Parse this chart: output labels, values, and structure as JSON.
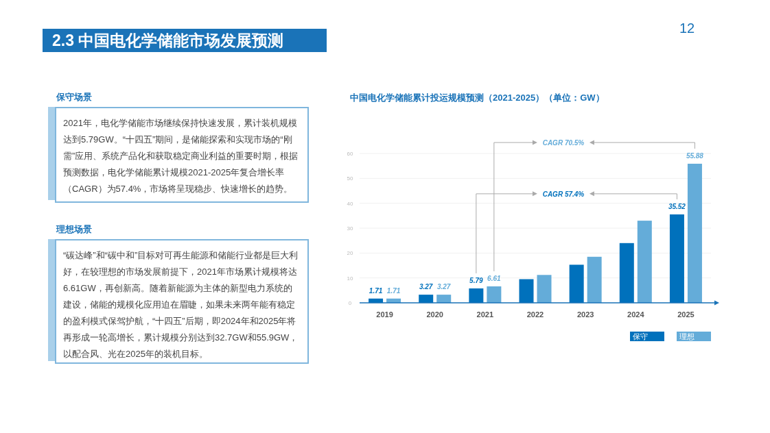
{
  "chart_data": [
    {
      "type": "other",
      "title": "2.3 中国电化学储能市场发展预测",
      "annotations": [
        "12"
      ]
    },
    {
      "type": "other",
      "title": "保守场景",
      "annotations": [
        "2021年，电化学储能市场继续保持快速发展，累计装机规模达到5.79GW。“十四五”期间，是储能探索和实现市场的“刚需”应用、系统产品化和获取稳定商业利益的重要时期，根据预测数据，电化学储能累计规模2021-2025年复合增长率（CAGR）为57.4%，市场将呈现稳步、快速增长的趋势。"
      ]
    },
    {
      "type": "other",
      "title": "理想场景",
      "annotations": [
        "“碳达峰”和“碳中和”目标对可再生能源和储能行业都是巨大利好，在较理想的市场发展前提下，2021年市场累计规模将达6.61GW，再创新高。随着新能源为主体的新型电力系统的建设，储能的规模化应用迫在眉睫，如果未来两年能有稳定的盈利模式保驾护航，“十四五”后期，即2024年和2025年将再形成一轮高增长，累计规模分别达到32.7GW和55.9GW，以配合风、光在2025年的装机目标。"
      ]
    },
    {
      "type": "bar",
      "title": "中国电化学储能累计投运规模预测（2021-2025）（单位：GW）",
      "categories": [
        "2019",
        "2020",
        "2021",
        "2022",
        "2023",
        "2024",
        "2025"
      ],
      "series": [
        {
          "name": "保守",
          "color": "#0071bc",
          "values": [
            1.71,
            3.27,
            5.79,
            9.5,
            15.3,
            24,
            35.52
          ],
          "value_labels": [
            "1.71",
            "3.27",
            "5.79",
            null,
            null,
            null,
            "35.52"
          ]
        },
        {
          "name": "理想",
          "color": "#64acd9",
          "values": [
            1.71,
            3.27,
            6.61,
            11.2,
            18.5,
            33,
            55.88
          ],
          "value_labels": [
            "1.71",
            "3.27",
            "6.61",
            null,
            null,
            null,
            "55.88"
          ]
        }
      ],
      "ylim": [
        0,
        60
      ],
      "yticks": [
        0,
        10,
        20,
        30,
        40,
        50,
        60
      ],
      "grid": "y",
      "legend": "bottom right",
      "annotations": [
        "CAGR 57.4%",
        "CAGR 70.5%"
      ]
    }
  ]
}
